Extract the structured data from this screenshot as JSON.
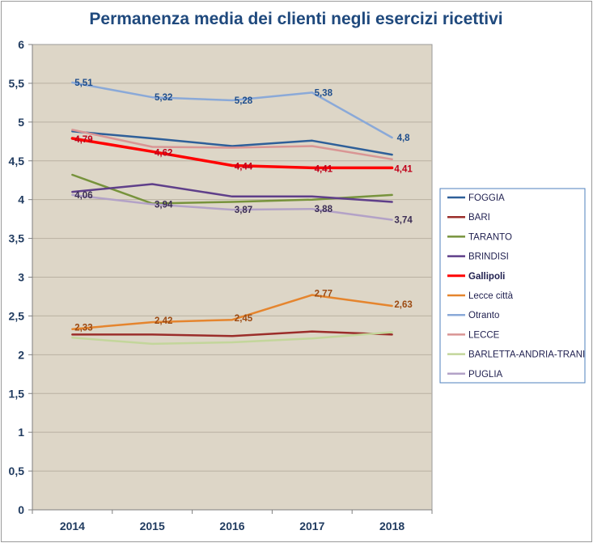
{
  "chart_data": {
    "type": "line",
    "title": "Permanenza media dei clienti negli esercizi ricettivi",
    "xlabel": "",
    "ylabel": "",
    "categories": [
      "2014",
      "2015",
      "2016",
      "2017",
      "2018"
    ],
    "ylim": [
      0,
      6
    ],
    "y_ticks": [
      "0",
      "0,5",
      "1",
      "1,5",
      "2",
      "2,5",
      "3",
      "3,5",
      "4",
      "4,5",
      "5",
      "5,5",
      "6"
    ],
    "grid": true,
    "legend_position": "right",
    "background": "#ddd6c7",
    "series": [
      {
        "name": "FOGGIA",
        "color": "#2e5f99",
        "width": 2.5,
        "values": [
          4.88,
          4.79,
          4.69,
          4.76,
          4.58
        ],
        "labels": []
      },
      {
        "name": "BARI",
        "color": "#9b2d2a",
        "width": 2.5,
        "values": [
          2.26,
          2.26,
          2.24,
          2.3,
          2.26
        ],
        "labels": []
      },
      {
        "name": "TARANTO",
        "color": "#77933c",
        "width": 2.5,
        "values": [
          4.32,
          3.95,
          3.97,
          4.0,
          4.06
        ],
        "labels": []
      },
      {
        "name": "BRINDISI",
        "color": "#5f3f8a",
        "width": 2.5,
        "values": [
          4.1,
          4.2,
          4.04,
          4.04,
          3.97
        ],
        "labels": []
      },
      {
        "name": "Gallipoli",
        "color": "#ff0000",
        "width": 3.5,
        "values": [
          4.79,
          4.62,
          4.44,
          4.41,
          4.41
        ],
        "labels": [
          "4,79",
          "4,62",
          "4,44",
          "4,41",
          "4,41"
        ],
        "label_color": "#c0001a"
      },
      {
        "name": "Lecce città",
        "color": "#e5852e",
        "width": 2.5,
        "values": [
          2.33,
          2.42,
          2.45,
          2.77,
          2.63
        ],
        "labels": [
          "2,33",
          "2,42",
          "2,45",
          "2,77",
          "2,63"
        ],
        "label_color": "#9c4a12"
      },
      {
        "name": "Otranto",
        "color": "#8aa9d8",
        "width": 2.5,
        "values": [
          5.51,
          5.32,
          5.28,
          5.38,
          4.8
        ],
        "labels": [
          "5,51",
          "5,32",
          "5,28",
          "5,38",
          "4,8"
        ],
        "label_color": "#1f4e8c"
      },
      {
        "name": "LECCE",
        "color": "#d99594",
        "width": 2.5,
        "values": [
          4.9,
          4.68,
          4.67,
          4.69,
          4.52
        ],
        "labels": []
      },
      {
        "name": "BARLETTA-ANDRIA-TRANI",
        "color": "#c3d69b",
        "width": 2.5,
        "values": [
          2.22,
          2.14,
          2.16,
          2.21,
          2.29
        ],
        "labels": []
      },
      {
        "name": "PUGLIA",
        "color": "#b3a2c7",
        "width": 2.5,
        "values": [
          4.06,
          3.94,
          3.87,
          3.88,
          3.74
        ],
        "labels": [
          "4,06",
          "3,94",
          "3,87",
          "3,88",
          "3,74"
        ],
        "label_color": "#3c2e55"
      }
    ]
  }
}
